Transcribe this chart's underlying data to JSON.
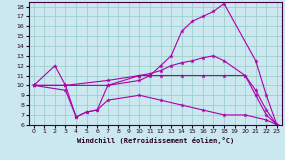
{
  "xlabel": "Windchill (Refroidissement éolien,°C)",
  "background_color": "#cbe8f0",
  "grid_color": "#9ecfcc",
  "line_color": "#aa00aa",
  "xlim": [
    -0.5,
    23.5
  ],
  "ylim": [
    6,
    18.5
  ],
  "xticks": [
    0,
    1,
    2,
    3,
    4,
    5,
    6,
    7,
    8,
    9,
    10,
    11,
    12,
    13,
    14,
    15,
    16,
    17,
    18,
    19,
    20,
    21,
    22,
    23
  ],
  "yticks": [
    6,
    7,
    8,
    9,
    10,
    11,
    12,
    13,
    14,
    15,
    16,
    17,
    18
  ],
  "lines": [
    {
      "x": [
        0,
        2,
        3,
        4,
        5,
        6,
        7,
        10,
        11,
        12,
        13,
        14,
        15,
        16,
        17,
        18,
        21,
        22,
        23
      ],
      "y": [
        10,
        12,
        10,
        6.8,
        7.3,
        7.5,
        10,
        10.5,
        11,
        12,
        13,
        15.5,
        16.5,
        17,
        17.5,
        18.3,
        12.5,
        9,
        6
      ]
    },
    {
      "x": [
        0,
        3,
        7,
        10,
        11,
        12,
        13,
        14,
        15,
        16,
        17,
        18,
        20,
        21,
        22,
        23
      ],
      "y": [
        10,
        10,
        10,
        11,
        11.2,
        11.5,
        12,
        12.3,
        12.5,
        12.8,
        13,
        12.5,
        11,
        9.5,
        7.5,
        6
      ]
    },
    {
      "x": [
        0,
        3,
        7,
        10,
        12,
        14,
        16,
        18,
        20,
        21,
        22,
        23
      ],
      "y": [
        10,
        10,
        10.5,
        11,
        11,
        11,
        11,
        11,
        11,
        9,
        7,
        6
      ]
    },
    {
      "x": [
        0,
        3,
        4,
        5,
        6,
        7,
        10,
        12,
        14,
        16,
        18,
        20,
        22,
        23
      ],
      "y": [
        10,
        9.5,
        6.8,
        7.3,
        7.5,
        8.5,
        9,
        8.5,
        8,
        7.5,
        7,
        7,
        6.5,
        6
      ]
    }
  ]
}
